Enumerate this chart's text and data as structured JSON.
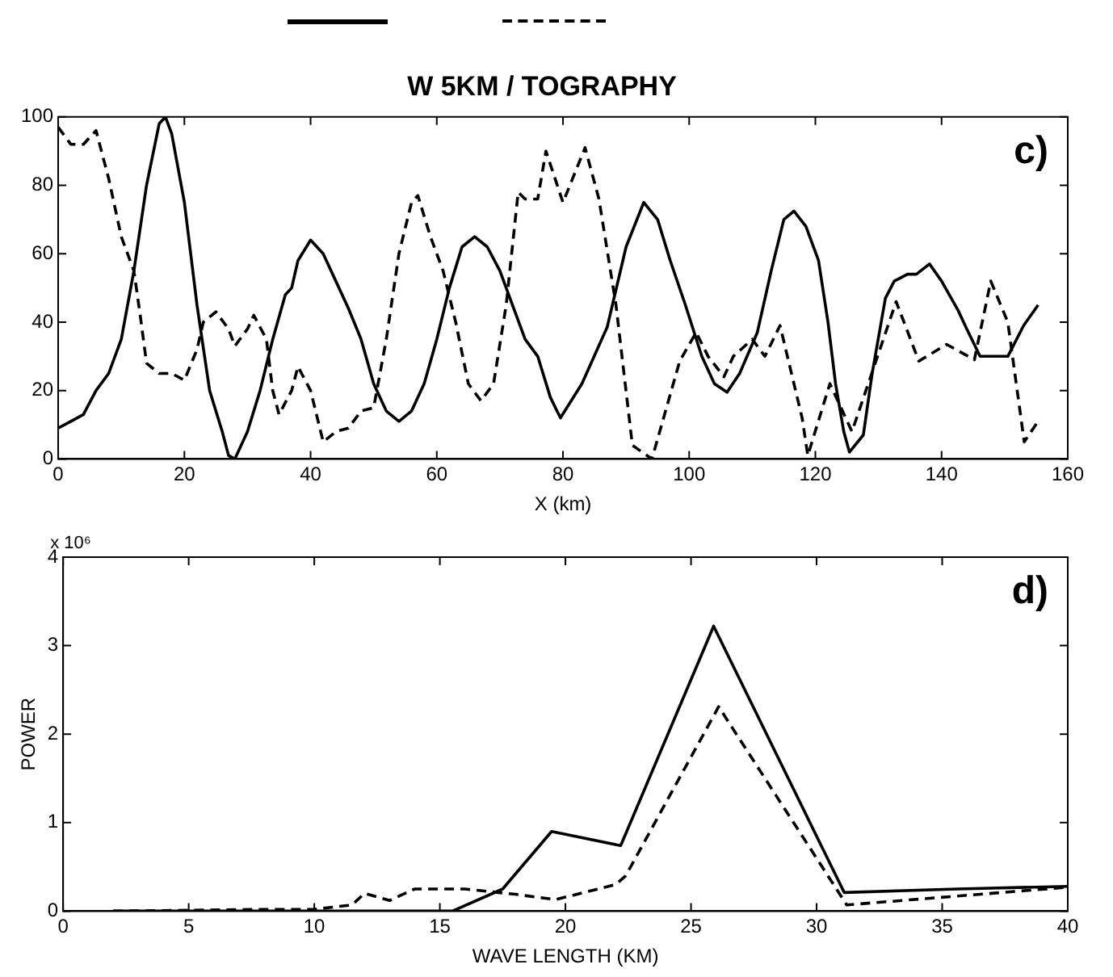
{
  "chart_data": [
    {
      "type": "line",
      "title": "W 5KM / TOGRAPHY",
      "xlabel": "X (km)",
      "annotations": [
        "c)"
      ],
      "xlim": [
        0,
        160
      ],
      "xticks": [
        0,
        20,
        40,
        60,
        80,
        100,
        120,
        140,
        160
      ],
      "ylim": [
        0,
        100
      ],
      "yticks": [
        0,
        20,
        40,
        60,
        80,
        100
      ],
      "grid": false,
      "marker": "none",
      "series": [
        {
          "color": "#000000",
          "line_style": "solid",
          "x": [
            0,
            2,
            4,
            6,
            8,
            10,
            12,
            14,
            16,
            17,
            18,
            20,
            22,
            24,
            26,
            27,
            28,
            30,
            32,
            34,
            36,
            37,
            38,
            40,
            42,
            44,
            46,
            48,
            50,
            52,
            54,
            56,
            58,
            60,
            62,
            64,
            66,
            68,
            70,
            72,
            74,
            76,
            78,
            79.6,
            83,
            87,
            90,
            92.8,
            95,
            97,
            99.4,
            102,
            104,
            106,
            108,
            110.8,
            113,
            115,
            116.6,
            118.5,
            120.5,
            122,
            123.2,
            124.5,
            125.4,
            127.6,
            129,
            131.1,
            132.5,
            134.6,
            136,
            138.1,
            140,
            142.6,
            144,
            146.1,
            148,
            150.5,
            153,
            155.3
          ],
          "values": [
            9,
            11,
            13,
            20,
            25,
            35,
            55,
            80,
            98,
            100,
            95,
            75,
            45,
            20,
            8,
            1,
            0,
            8,
            20,
            35,
            48,
            50,
            58,
            64,
            60,
            52,
            44,
            35,
            22,
            14,
            11,
            14,
            22,
            35,
            50,
            62,
            65,
            62,
            55,
            45,
            35,
            30,
            18,
            12,
            22,
            38.5,
            62,
            75,
            70,
            58,
            45,
            30,
            22,
            19.5,
            25,
            37,
            55,
            70,
            72.5,
            68,
            58,
            40,
            22,
            8,
            2,
            7,
            25,
            47,
            52,
            54,
            54,
            57,
            52,
            43.5,
            38,
            30,
            30,
            30,
            39,
            45
          ]
        },
        {
          "color": "#000000",
          "line_style": "dashed",
          "x": [
            0,
            2,
            4,
            6,
            8,
            10,
            12,
            13,
            14,
            16,
            18,
            20,
            22,
            23,
            25,
            27,
            28,
            30,
            31,
            33,
            34,
            35,
            37,
            38,
            40,
            42,
            44,
            46,
            48,
            50,
            52,
            54,
            56,
            57,
            59,
            61,
            63,
            65,
            67,
            69,
            71,
            72.9,
            74,
            76,
            77.3,
            80,
            83.5,
            85.7,
            88.4,
            91,
            94.1,
            98.5,
            101.1,
            103,
            105.5,
            107,
            110,
            112,
            114.4,
            117.9,
            118.8,
            122.3,
            125.8,
            129.3,
            132.8,
            136.4,
            140.8,
            145.2,
            147.8,
            150.5,
            153.1,
            155.3
          ],
          "values": [
            97,
            92,
            92,
            96,
            82,
            65,
            55,
            42,
            28,
            25,
            25,
            23,
            32,
            40,
            43,
            38,
            33,
            38,
            42,
            35,
            20,
            13,
            20,
            27,
            20,
            5,
            8,
            9,
            14,
            15,
            35,
            60,
            75,
            77,
            65,
            55,
            40,
            22,
            17,
            22,
            45,
            78,
            76,
            76,
            90,
            75,
            91,
            76,
            45,
            4,
            0,
            28.6,
            37,
            30,
            24,
            30,
            35,
            30,
            39,
            12,
            1,
            22,
            8,
            27,
            46,
            28.6,
            33.5,
            29,
            52,
            40,
            5,
            11
          ]
        }
      ]
    },
    {
      "type": "line",
      "xlabel": "WAVE LENGTH (KM)",
      "ylabel": "POWER",
      "annotations": [
        "d)",
        "x 10⁶"
      ],
      "xlim": [
        0,
        40
      ],
      "xticks": [
        0,
        5,
        10,
        15,
        20,
        25,
        30,
        35,
        40
      ],
      "ylim": [
        0,
        4
      ],
      "yticks": [
        0,
        1,
        2,
        3,
        4
      ],
      "grid": false,
      "marker": "none",
      "series": [
        {
          "color": "#000000",
          "line_style": "solid",
          "x": [
            2,
            8,
            15.5,
            17.5,
            19.45,
            22.2,
            25.9,
            31.1,
            35.6,
            40
          ],
          "values": [
            0,
            0,
            0,
            0.25,
            0.9,
            0.74,
            3.22,
            0.21,
            0.25,
            0.28
          ]
        },
        {
          "color": "#000000",
          "line_style": "dashed",
          "x": [
            2,
            8,
            10,
            11.5,
            12,
            13,
            14,
            16,
            18,
            19.6,
            22,
            22.4,
            26.1,
            31.2,
            35.6,
            40
          ],
          "values": [
            0,
            0.02,
            0.02,
            0.07,
            0.2,
            0.12,
            0.25,
            0.25,
            0.19,
            0.13,
            0.3,
            0.4,
            2.31,
            0.07,
            0.17,
            0.27
          ]
        }
      ]
    }
  ]
}
